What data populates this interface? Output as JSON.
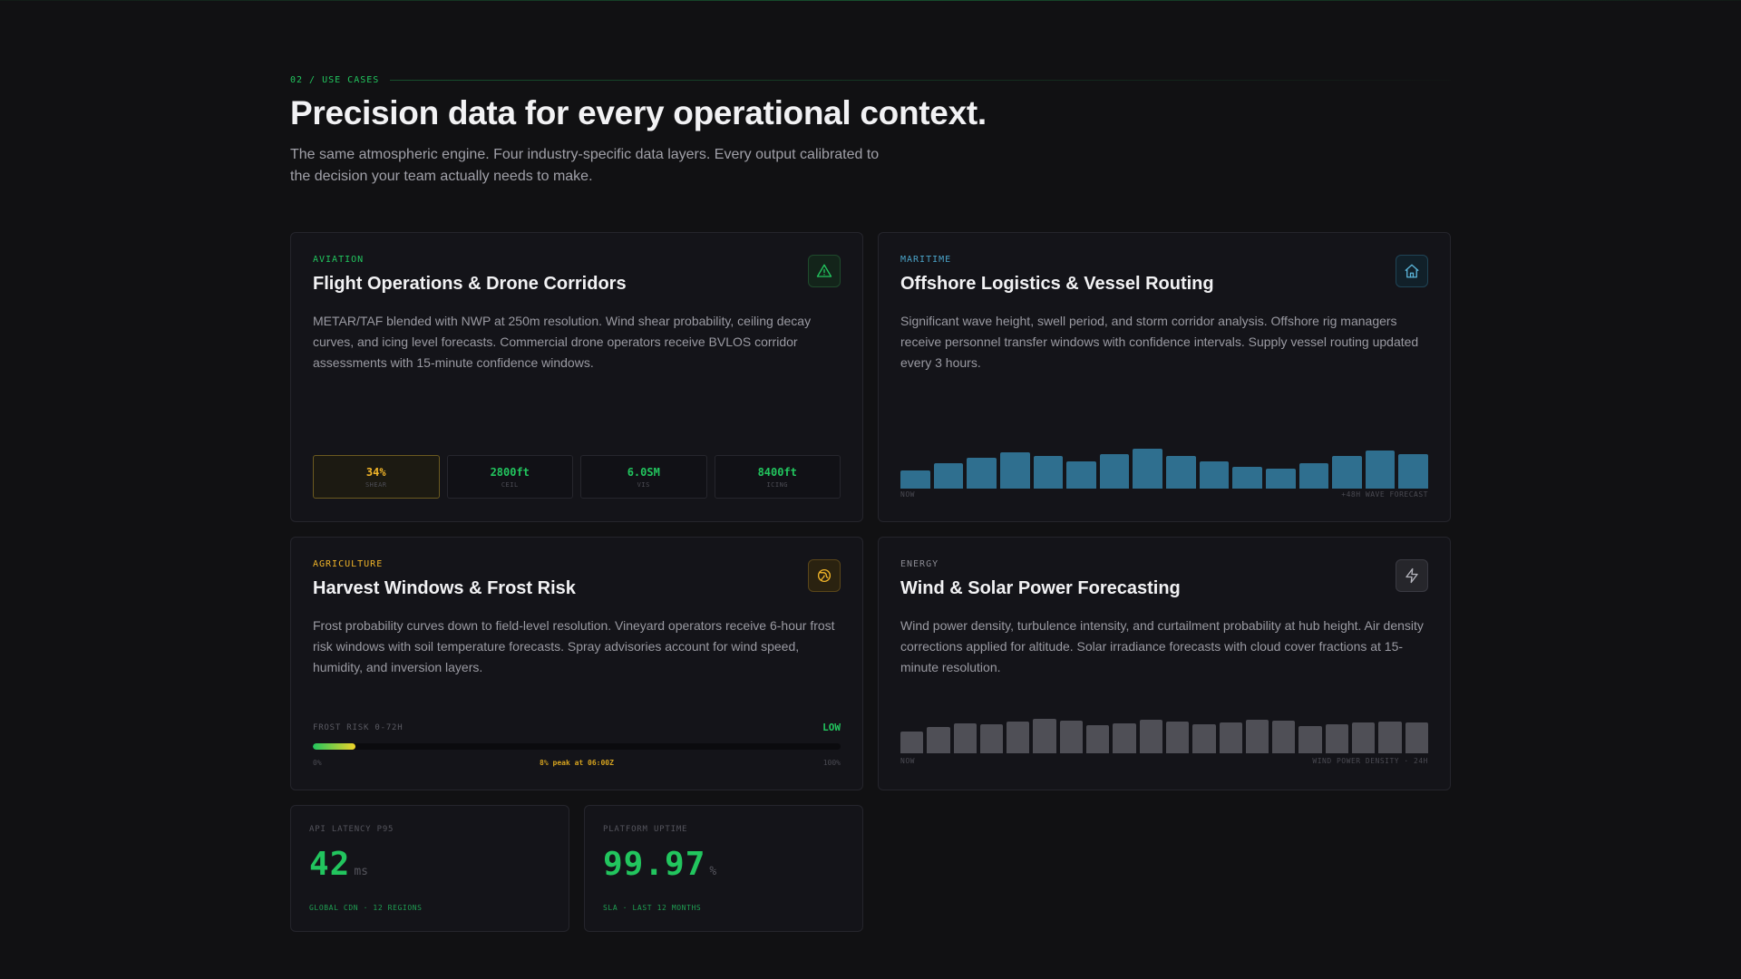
{
  "section": {
    "eyebrow": "02 / USE CASES",
    "title": "Precision data for every operational context.",
    "subtitle": "The same atmospheric engine. Four industry-specific data layers. Every output calibrated to the decision your team actually needs to make."
  },
  "colors": {
    "accent_green": "#22c55e",
    "maritime_blue": "#2f6f8f",
    "agriculture_amber": "#f0b429",
    "energy_gray": "#4f4f56"
  },
  "cards": {
    "aviation": {
      "tag": "AVIATION",
      "title": "Flight Operations & Drone Corridors",
      "description": "METAR/TAF blended with NWP at 250m resolution. Wind shear probability, ceiling decay curves, and icing level forecasts. Commercial drone operators receive BVLOS corridor assessments with 15-minute confidence windows.",
      "icon": "warning-triangle-icon",
      "metrics": [
        {
          "value": "34%",
          "label": "SHEAR"
        },
        {
          "value": "2800ft",
          "label": "CEIL"
        },
        {
          "value": "6.0SM",
          "label": "VIS"
        },
        {
          "value": "8400ft",
          "label": "ICING"
        }
      ]
    },
    "maritime": {
      "tag": "MARITIME",
      "title": "Offshore Logistics & Vessel Routing",
      "description": "Significant wave height, swell period, and storm corridor analysis. Offshore rig managers receive personnel transfer windows with confidence intervals. Supply vessel routing updated every 3 hours.",
      "icon": "home-icon",
      "chart_label_start": "NOW",
      "chart_label_end": "+48H WAVE FORECAST",
      "wave_levels": [
        0.5,
        0.7,
        0.85,
        1.0,
        0.9,
        0.75,
        0.95,
        1.1,
        0.9,
        0.75,
        0.6,
        0.55,
        0.7,
        0.9,
        1.05,
        0.95
      ]
    },
    "agriculture": {
      "tag": "AGRICULTURE",
      "title": "Harvest Windows & Frost Risk",
      "description": "Frost probability curves down to field-level resolution. Vineyard operators receive 6-hour frost risk windows with soil temperature forecasts. Spray advisories account for wind speed, humidity, and inversion layers.",
      "icon": "globe-icon",
      "frost_label": "FROST RISK 0-72H",
      "frost_level": "LOW",
      "frost_fraction": 0.08,
      "scale_min": "0%",
      "scale_max": "100%",
      "peak_note": "8% peak at 06:00Z"
    },
    "energy": {
      "tag": "ENERGY",
      "title": "Wind & Solar Power Forecasting",
      "description": "Wind power density, turbulence intensity, and curtailment probability at hub height. Air density corrections applied for altitude. Solar irradiance forecasts with cloud cover fractions at 15-minute resolution.",
      "icon": "lightning-bolt-icon",
      "chart_label_start": "NOW",
      "chart_label_end": "WIND POWER DENSITY · 24H",
      "power_levels": [
        0.62,
        0.75,
        0.88,
        0.85,
        0.92,
        1.0,
        0.95,
        0.82,
        0.87,
        0.98,
        0.92,
        0.85,
        0.9,
        0.98,
        0.95,
        0.8,
        0.85,
        0.9,
        0.93,
        0.9
      ]
    }
  },
  "stats": {
    "latency": {
      "label": "API LATENCY P95",
      "value": "42",
      "unit": "ms",
      "foot": "GLOBAL CDN · 12 REGIONS"
    },
    "uptime": {
      "label": "PLATFORM UPTIME",
      "value": "99.97",
      "unit": "%",
      "foot": "SLA · LAST 12 MONTHS"
    }
  }
}
